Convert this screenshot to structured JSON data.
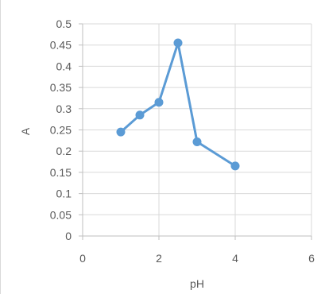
{
  "chart_data": {
    "type": "scatter",
    "title": "",
    "xlabel": "pH",
    "ylabel": "A",
    "xlim": [
      0,
      6
    ],
    "ylim": [
      0,
      0.5
    ],
    "x_ticks": [
      "0",
      "2",
      "4",
      "6"
    ],
    "y_ticks": [
      "0",
      "0.05",
      "0.1",
      "0.15",
      "0.2",
      "0.25",
      "0.3",
      "0.35",
      "0.4",
      "0.45",
      "0.5"
    ],
    "grid": "vertical and horizontal",
    "legend": "none",
    "series": [
      {
        "color": "#5b9bd5",
        "marker": "circle",
        "line": "straight",
        "x": [
          1,
          1.5,
          2,
          2.5,
          3,
          4
        ],
        "y": [
          0.245,
          0.285,
          0.315,
          0.455,
          0.222,
          0.165
        ]
      }
    ]
  }
}
